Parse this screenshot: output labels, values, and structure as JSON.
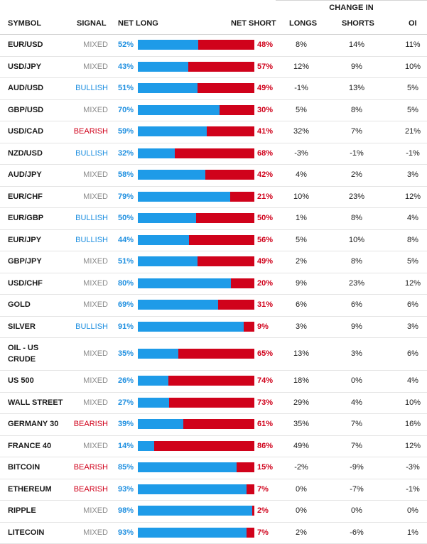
{
  "header": {
    "change_in": "CHANGE IN",
    "symbol": "SYMBOL",
    "signal": "SIGNAL",
    "net_long": "NET LONG",
    "net_short": "NET SHORT",
    "longs": "LONGS",
    "shorts": "SHORTS",
    "oi": "OI"
  },
  "colors": {
    "long": "#1e9be8",
    "short": "#d0021b",
    "mixed": "#8a8a8a"
  },
  "rows": [
    {
      "symbol": "EUR/USD",
      "signal": "MIXED",
      "net_long": "52%",
      "net_long_value": 52,
      "net_short": "48%",
      "longs": "8%",
      "shorts": "14%",
      "oi": "11%"
    },
    {
      "symbol": "USD/JPY",
      "signal": "MIXED",
      "net_long": "43%",
      "net_long_value": 43,
      "net_short": "57%",
      "longs": "12%",
      "shorts": "9%",
      "oi": "10%"
    },
    {
      "symbol": "AUD/USD",
      "signal": "BULLISH",
      "net_long": "51%",
      "net_long_value": 51,
      "net_short": "49%",
      "longs": "-1%",
      "shorts": "13%",
      "oi": "5%"
    },
    {
      "symbol": "GBP/USD",
      "signal": "MIXED",
      "net_long": "70%",
      "net_long_value": 70,
      "net_short": "30%",
      "longs": "5%",
      "shorts": "8%",
      "oi": "5%"
    },
    {
      "symbol": "USD/CAD",
      "signal": "BEARISH",
      "net_long": "59%",
      "net_long_value": 59,
      "net_short": "41%",
      "longs": "32%",
      "shorts": "7%",
      "oi": "21%"
    },
    {
      "symbol": "NZD/USD",
      "signal": "BULLISH",
      "net_long": "32%",
      "net_long_value": 32,
      "net_short": "68%",
      "longs": "-3%",
      "shorts": "-1%",
      "oi": "-1%"
    },
    {
      "symbol": "AUD/JPY",
      "signal": "MIXED",
      "net_long": "58%",
      "net_long_value": 58,
      "net_short": "42%",
      "longs": "4%",
      "shorts": "2%",
      "oi": "3%"
    },
    {
      "symbol": "EUR/CHF",
      "signal": "MIXED",
      "net_long": "79%",
      "net_long_value": 79,
      "net_short": "21%",
      "longs": "10%",
      "shorts": "23%",
      "oi": "12%"
    },
    {
      "symbol": "EUR/GBP",
      "signal": "BULLISH",
      "net_long": "50%",
      "net_long_value": 50,
      "net_short": "50%",
      "longs": "1%",
      "shorts": "8%",
      "oi": "4%"
    },
    {
      "symbol": "EUR/JPY",
      "signal": "BULLISH",
      "net_long": "44%",
      "net_long_value": 44,
      "net_short": "56%",
      "longs": "5%",
      "shorts": "10%",
      "oi": "8%"
    },
    {
      "symbol": "GBP/JPY",
      "signal": "MIXED",
      "net_long": "51%",
      "net_long_value": 51,
      "net_short": "49%",
      "longs": "2%",
      "shorts": "8%",
      "oi": "5%"
    },
    {
      "symbol": "USD/CHF",
      "signal": "MIXED",
      "net_long": "80%",
      "net_long_value": 80,
      "net_short": "20%",
      "longs": "9%",
      "shorts": "23%",
      "oi": "12%"
    },
    {
      "symbol": "GOLD",
      "signal": "MIXED",
      "net_long": "69%",
      "net_long_value": 69,
      "net_short": "31%",
      "longs": "6%",
      "shorts": "6%",
      "oi": "6%"
    },
    {
      "symbol": "SILVER",
      "signal": "BULLISH",
      "net_long": "91%",
      "net_long_value": 91,
      "net_short": "9%",
      "longs": "3%",
      "shorts": "9%",
      "oi": "3%"
    },
    {
      "symbol": "OIL - US CRUDE",
      "signal": "MIXED",
      "net_long": "35%",
      "net_long_value": 35,
      "net_short": "65%",
      "longs": "13%",
      "shorts": "3%",
      "oi": "6%"
    },
    {
      "symbol": "US 500",
      "signal": "MIXED",
      "net_long": "26%",
      "net_long_value": 26,
      "net_short": "74%",
      "longs": "18%",
      "shorts": "0%",
      "oi": "4%"
    },
    {
      "symbol": "WALL STREET",
      "signal": "MIXED",
      "net_long": "27%",
      "net_long_value": 27,
      "net_short": "73%",
      "longs": "29%",
      "shorts": "4%",
      "oi": "10%"
    },
    {
      "symbol": "GERMANY 30",
      "signal": "BEARISH",
      "net_long": "39%",
      "net_long_value": 39,
      "net_short": "61%",
      "longs": "35%",
      "shorts": "7%",
      "oi": "16%"
    },
    {
      "symbol": "FRANCE 40",
      "signal": "MIXED",
      "net_long": "14%",
      "net_long_value": 14,
      "net_short": "86%",
      "longs": "49%",
      "shorts": "7%",
      "oi": "12%"
    },
    {
      "symbol": "BITCOIN",
      "signal": "BEARISH",
      "net_long": "85%",
      "net_long_value": 85,
      "net_short": "15%",
      "longs": "-2%",
      "shorts": "-9%",
      "oi": "-3%"
    },
    {
      "symbol": "ETHEREUM",
      "signal": "BEARISH",
      "net_long": "93%",
      "net_long_value": 93,
      "net_short": "7%",
      "longs": "0%",
      "shorts": "-7%",
      "oi": "-1%"
    },
    {
      "symbol": "RIPPLE",
      "signal": "MIXED",
      "net_long": "98%",
      "net_long_value": 98,
      "net_short": "2%",
      "longs": "0%",
      "shorts": "0%",
      "oi": "0%"
    },
    {
      "symbol": "LITECOIN",
      "signal": "MIXED",
      "net_long": "93%",
      "net_long_value": 93,
      "net_short": "7%",
      "longs": "2%",
      "shorts": "-6%",
      "oi": "1%"
    }
  ]
}
